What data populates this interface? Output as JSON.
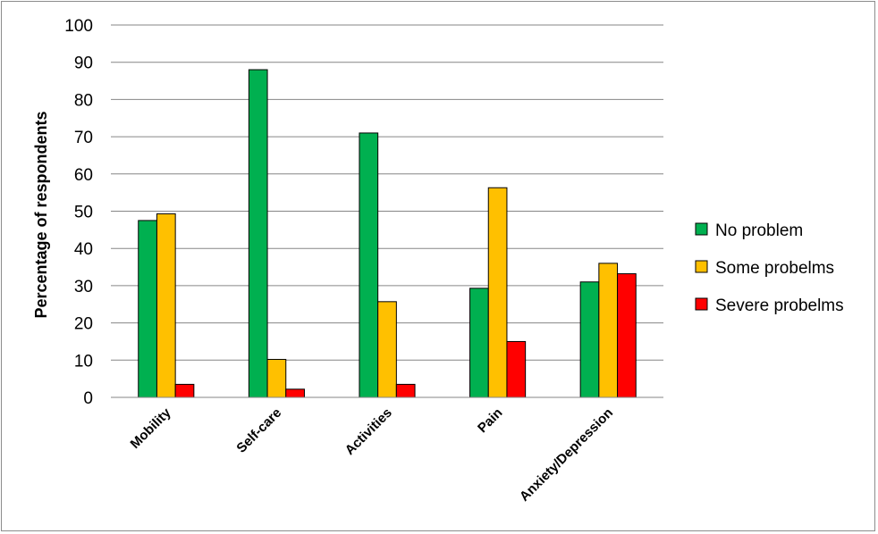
{
  "chart_data": {
    "type": "bar",
    "categories": [
      "Mobility",
      "Self-care",
      "Activities",
      "Pain",
      "Anxiety/Depression"
    ],
    "series": [
      {
        "name": "No problem",
        "color": "#00b050",
        "values": [
          47.5,
          88,
          71,
          29.3,
          31
        ]
      },
      {
        "name": "Some probelms",
        "color": "#ffc000",
        "values": [
          49.3,
          10.2,
          25.7,
          56.3,
          36
        ]
      },
      {
        "name": "Severe probelms",
        "color": "#ff0000",
        "values": [
          3.5,
          2.2,
          3.5,
          15,
          33.2
        ]
      }
    ],
    "ylabel": "Percentage of respondents",
    "xlabel": "",
    "ylim": [
      0,
      100
    ],
    "yticks": [
      0,
      10,
      20,
      30,
      40,
      50,
      60,
      70,
      80,
      90,
      100
    ],
    "grid": true,
    "legend_position": "right"
  }
}
